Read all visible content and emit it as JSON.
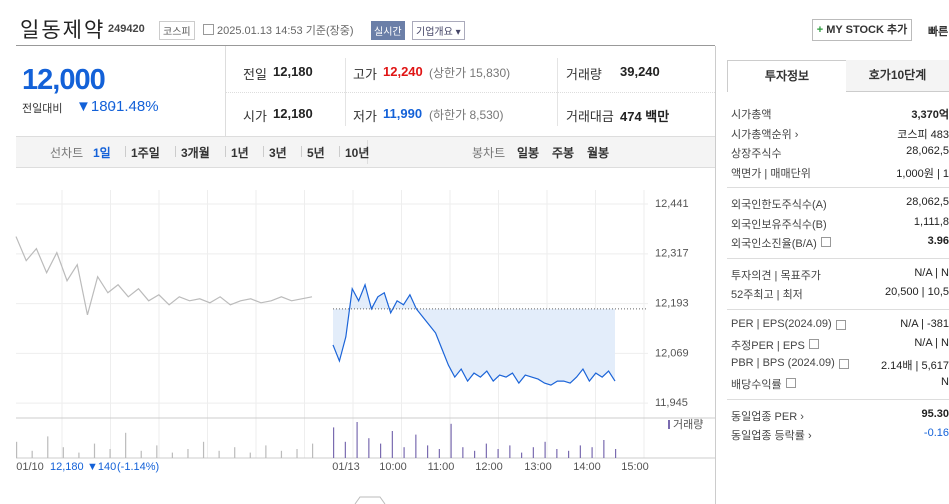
{
  "header": {
    "name": "일동제약",
    "code": "249420",
    "market": "코스피",
    "datetime": "2025.01.13 14:53",
    "basis": "기준(장중)",
    "realtime": "실시간",
    "company_info": "기업개요",
    "my_stock": "MY STOCK 추가",
    "quick": "빠른"
  },
  "price": {
    "current": "12,000",
    "change_label": "전일대비",
    "change": "▼180",
    "change_rate": "-1.48%"
  },
  "summary": {
    "rows": [
      [
        {
          "label": "전일",
          "value": "12,180"
        },
        {
          "label": "고가",
          "value": "12,240",
          "note": "(상한가 15,830)"
        },
        {
          "label": "거래량",
          "value": "39,240"
        }
      ],
      [
        {
          "label": "시가",
          "value": "12,180"
        },
        {
          "label": "저가",
          "value": "11,990",
          "note": "(하한가 8,530)"
        },
        {
          "label": "거래대금",
          "value": "474 백만"
        }
      ]
    ]
  },
  "tabs": {
    "line_label": "선차트",
    "line": [
      "1일",
      "1주일",
      "3개월",
      "1년",
      "3년",
      "5년",
      "10년"
    ],
    "candle_label": "봉차트",
    "candle": [
      "일봉",
      "주봉",
      "월봉"
    ]
  },
  "chart": {
    "ylim": [
      11928,
      12476
    ],
    "yticks": [
      {
        "value": 12441,
        "label": "12,441"
      },
      {
        "value": 12317,
        "label": "12,317"
      },
      {
        "value": 12193,
        "label": "12,193"
      },
      {
        "value": 12069,
        "label": "12,069"
      },
      {
        "value": 11945,
        "label": "11,945"
      }
    ],
    "xlabels": [
      "01/10",
      "01/13",
      "10:00",
      "11:00",
      "12:00",
      "13:00",
      "14:00",
      "15:00"
    ],
    "prev_close": 12180,
    "prev_values": [
      12360,
      12300,
      12330,
      12270,
      12320,
      12250,
      12290,
      12165,
      12260,
      12220,
      12240,
      12210,
      12230,
      12200,
      12215,
      12190,
      12210,
      12200,
      12205,
      12195,
      12210,
      12190,
      12200,
      12205,
      12195,
      12200,
      12210,
      12200,
      12205,
      12210
    ],
    "today_values": [
      12090,
      12050,
      12110,
      12230,
      12200,
      12240,
      12180,
      12210,
      12220,
      12170,
      12200,
      12190,
      12215,
      12180,
      12160,
      12140,
      12120,
      12080,
      12040,
      12010,
      12030,
      12000,
      12020,
      12010,
      12025,
      12000,
      12015,
      12010,
      12020,
      11995,
      12015,
      12010,
      12005,
      11995,
      11990,
      12000,
      12000,
      11995,
      12010,
      12030,
      12000,
      12020,
      12010,
      12025,
      12000
    ],
    "volume_label": "거래량",
    "prev_volume": [
      900,
      400,
      1200,
      600,
      300,
      800,
      500,
      1400,
      400,
      700,
      300,
      500,
      900,
      400,
      600,
      300,
      700,
      400,
      500,
      800
    ],
    "today_volume": [
      1700,
      900,
      2000,
      1100,
      800,
      1500,
      600,
      1300,
      700,
      500,
      1900,
      600,
      400,
      800,
      500,
      700,
      300,
      600,
      900,
      500,
      400,
      700,
      600,
      1000,
      500
    ],
    "prev_day": "01/10",
    "prev_day_close": "12,180",
    "prev_day_change": "▼140",
    "prev_day_rate": "(-1.14%)"
  },
  "invest": {
    "tabs": [
      "투자정보",
      "호가10단계"
    ],
    "groups": [
      [
        {
          "label": "시가총액",
          "value": "3,370억",
          "bold": true
        },
        {
          "label": "시가총액순위 ›",
          "value": "코스피 483"
        },
        {
          "label": "상장주식수",
          "value": "28,062,5"
        },
        {
          "label": "액면가 | 매매단위",
          "value": "1,000원 | 1"
        }
      ],
      [
        {
          "label": "외국인한도주식수(A)",
          "value": "28,062,5"
        },
        {
          "label": "외국인보유주식수(B)",
          "value": "1,111,8"
        },
        {
          "label": "외국인소진율(B/A)",
          "value": "3.96",
          "help": true,
          "bold": true
        }
      ],
      [
        {
          "label": "투자의견 | 목표주가",
          "value": "N/A | N"
        },
        {
          "label": "52주최고 | 최저",
          "value": "20,500 | 10,5"
        }
      ],
      [
        {
          "label": "PER | EPS(2024.09)",
          "value": "N/A | -381",
          "help": true
        },
        {
          "label": "추정PER | EPS",
          "value": "N/A | N",
          "help": true
        },
        {
          "label": "PBR | BPS (2024.09)",
          "value": "2.14배 | 5,617",
          "help": true
        },
        {
          "label": "배당수익률",
          "value": "N",
          "help": true
        }
      ],
      [
        {
          "label": "동일업종 PER ›",
          "value": "95.30",
          "bold": true
        },
        {
          "label": "동일업종 등락률 ›",
          "value": "-0.16",
          "blue": true
        }
      ]
    ]
  }
}
